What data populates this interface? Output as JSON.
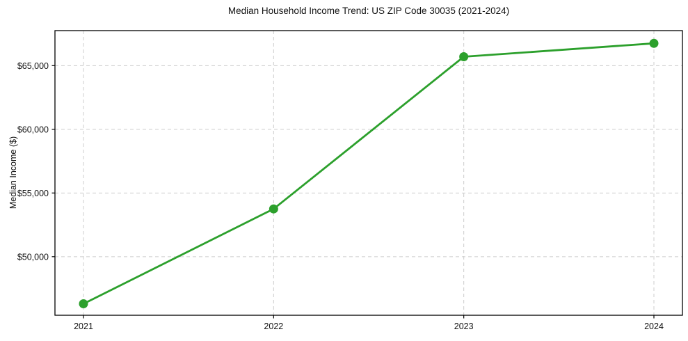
{
  "chart_data": {
    "type": "line",
    "title": "Median Household Income Trend: US ZIP Code 30035 (2021-2024)",
    "xlabel": "",
    "ylabel": "Median Income ($)",
    "x": [
      2021,
      2022,
      2023,
      2024
    ],
    "values": [
      46300,
      53750,
      65700,
      66750
    ],
    "series_name": "Median Household Income",
    "xticks": [
      2021,
      2022,
      2023,
      2024
    ],
    "xtick_labels": [
      "2021",
      "2022",
      "2023",
      "2024"
    ],
    "yticks": [
      50000,
      55000,
      60000,
      65000
    ],
    "ytick_labels": [
      "$50,000",
      "$55,000",
      "$60,000",
      "$65,000"
    ],
    "xlim": [
      2020.85,
      2024.15
    ],
    "ylim": [
      45400,
      67750
    ],
    "grid": true,
    "grid_style": "dashed",
    "legend": false,
    "style": {
      "line_color": "#2ca02c",
      "marker_color": "#2ca02c",
      "grid_color": "#cccccc",
      "spine_color": "#000000",
      "text_color": "#111111",
      "background": "#ffffff",
      "line_width": 2.8,
      "marker_radius": 6.5
    }
  }
}
